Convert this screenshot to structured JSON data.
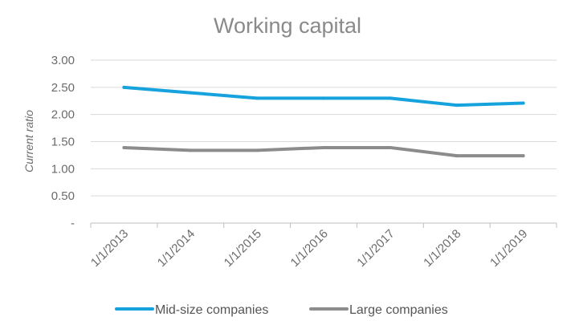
{
  "chart_data": {
    "type": "line",
    "title": "Working capital",
    "xlabel": "",
    "ylabel": "Current ratio",
    "categories": [
      "1/1/2013",
      "1/1/2014",
      "1/1/2015",
      "1/1/2016",
      "1/1/2017",
      "1/1/2018",
      "1/1/2019"
    ],
    "y_ticks": [
      "-",
      "0.50",
      "1.00",
      "1.50",
      "2.00",
      "2.50",
      "3.00"
    ],
    "ylim": [
      0,
      3
    ],
    "grid": true,
    "legend_position": "bottom",
    "series": [
      {
        "name": "Mid-size companies",
        "color": "#16a2dc",
        "values": [
          2.5,
          2.4,
          2.3,
          2.3,
          2.3,
          2.17,
          2.21
        ]
      },
      {
        "name": "Large companies",
        "color": "#8c8c8c",
        "values": [
          1.39,
          1.34,
          1.34,
          1.39,
          1.39,
          1.24,
          1.24
        ]
      }
    ]
  }
}
